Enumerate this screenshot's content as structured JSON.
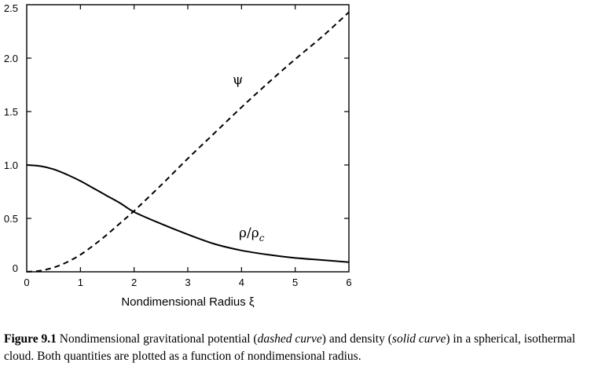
{
  "chart_data": {
    "type": "line",
    "title": "",
    "xlabel": "Nondimensional Radius ξ",
    "ylabel": "",
    "xlim": [
      0,
      6
    ],
    "ylim": [
      0,
      2.5
    ],
    "xticks": [
      "0",
      "1",
      "2",
      "3",
      "4",
      "5",
      "6"
    ],
    "yticks": [
      "0",
      "0.5",
      "1.0",
      "1.5",
      "2.0",
      "2.5"
    ],
    "grid": false,
    "series": [
      {
        "name": "ψ",
        "style": "dashed",
        "color": "#000000",
        "x": [
          0,
          0.25,
          0.5,
          0.75,
          1.0,
          1.25,
          1.5,
          1.75,
          2.0,
          2.5,
          3.0,
          3.5,
          4.0,
          4.5,
          5.0,
          5.5,
          6.0
        ],
        "y": [
          0,
          0.01,
          0.04,
          0.09,
          0.16,
          0.25,
          0.35,
          0.46,
          0.57,
          0.81,
          1.06,
          1.3,
          1.54,
          1.77,
          1.99,
          2.2,
          2.43
        ]
      },
      {
        "name": "ρ/ρ",
        "name_subscript": "c",
        "style": "solid",
        "color": "#000000",
        "x": [
          0,
          0.25,
          0.5,
          0.75,
          1.0,
          1.25,
          1.5,
          1.75,
          2.0,
          2.5,
          3.0,
          3.5,
          4.0,
          4.5,
          5.0,
          5.5,
          6.0
        ],
        "y": [
          1.0,
          0.99,
          0.96,
          0.91,
          0.85,
          0.78,
          0.71,
          0.64,
          0.56,
          0.45,
          0.35,
          0.26,
          0.2,
          0.16,
          0.13,
          0.11,
          0.09
        ]
      }
    ]
  },
  "caption": {
    "label": "Figure 9.1",
    "text_1": " Nondimensional gravitational potential (",
    "em_1": "dashed curve",
    "text_2": ") and density (",
    "em_2": "solid curve",
    "text_3": ") in a spherical, isothermal cloud. Both quantities are plotted as a function of nondimensional radius."
  }
}
